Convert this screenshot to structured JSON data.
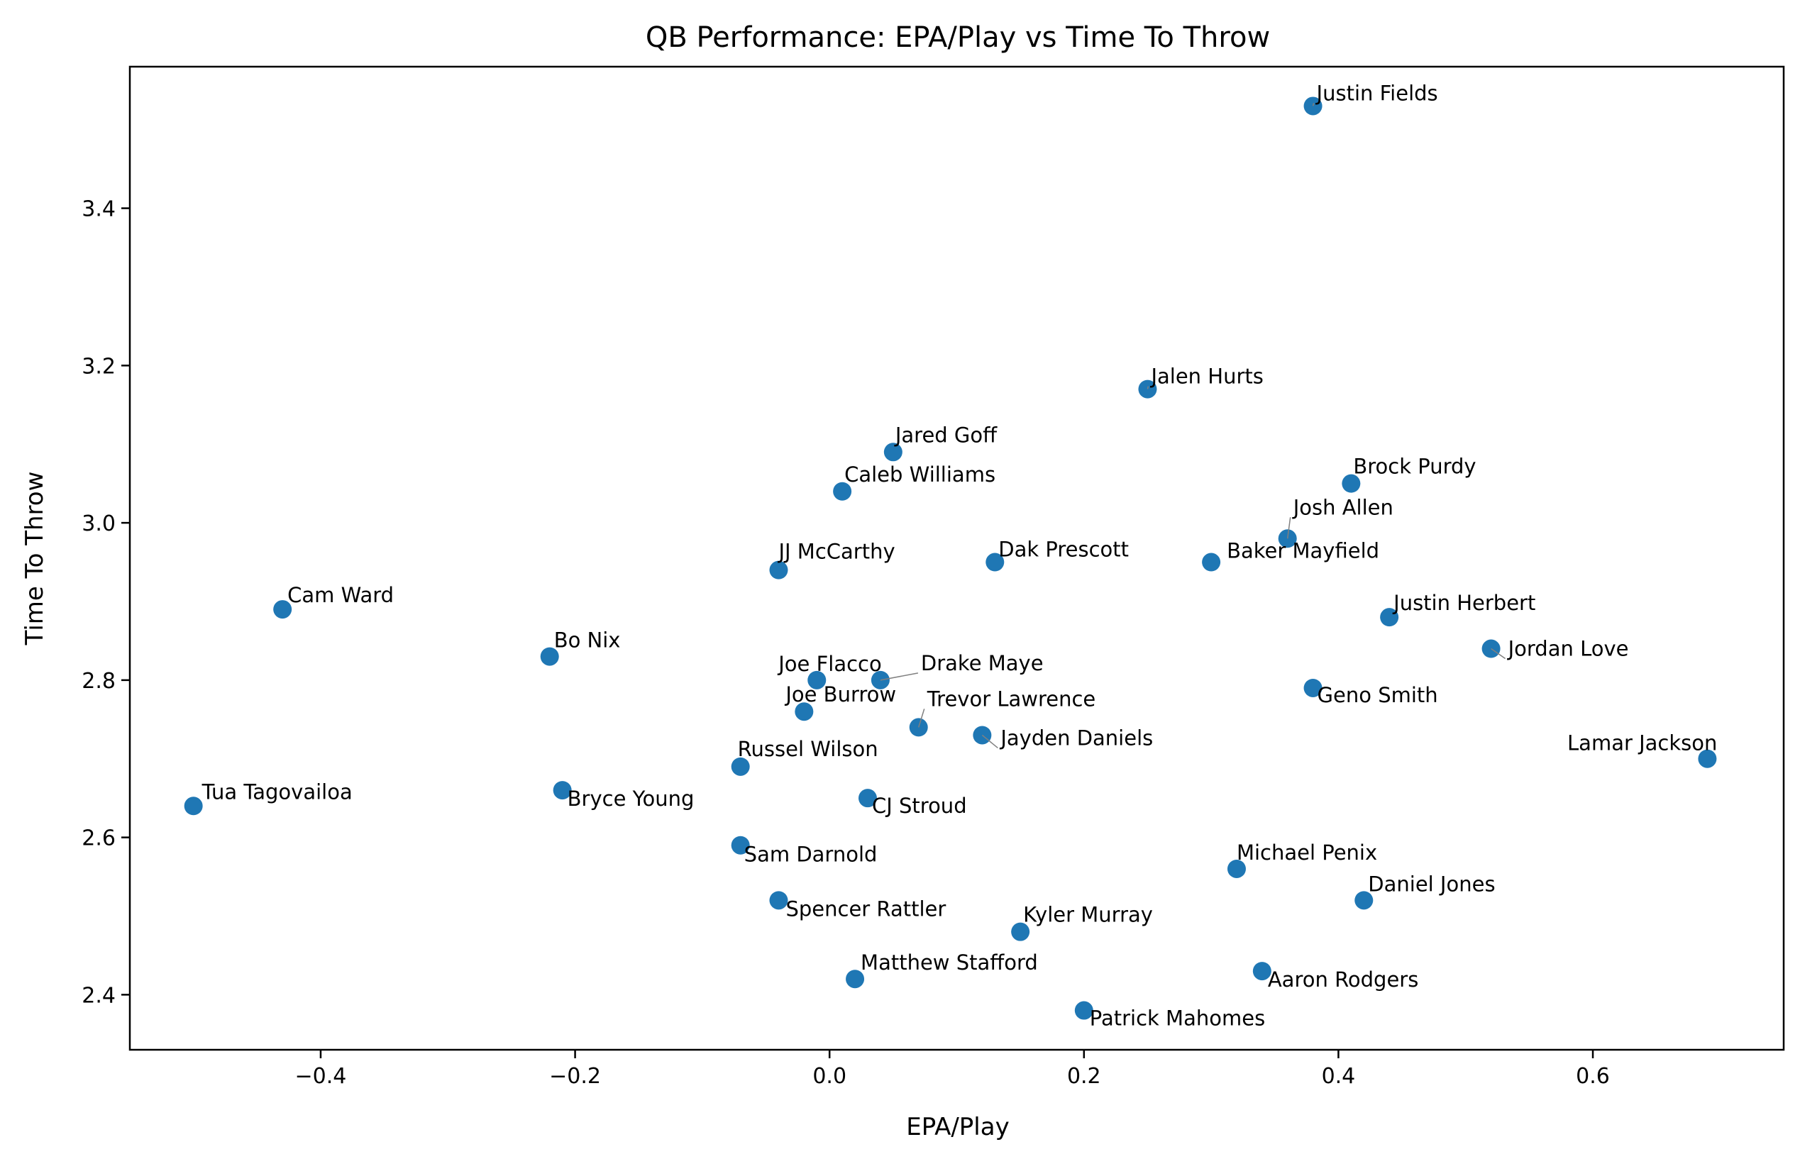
{
  "chart_data": {
    "type": "scatter",
    "title": "QB Performance: EPA/Play vs Time To Throw",
    "xlabel": "EPA/Play",
    "ylabel": "Time To Throw",
    "xlim": [
      -0.55,
      0.75
    ],
    "ylim": [
      2.33,
      3.58
    ],
    "grid": false,
    "point_color": "#1f77b4",
    "xticks": [
      {
        "value": -0.4,
        "label": "−0.4"
      },
      {
        "value": -0.2,
        "label": "−0.2"
      },
      {
        "value": 0.0,
        "label": "0.0"
      },
      {
        "value": 0.2,
        "label": "0.2"
      },
      {
        "value": 0.4,
        "label": "0.4"
      },
      {
        "value": 0.6,
        "label": "0.6"
      }
    ],
    "yticks": [
      {
        "value": 2.4,
        "label": "2.4"
      },
      {
        "value": 2.6,
        "label": "2.6"
      },
      {
        "value": 2.8,
        "label": "2.8"
      },
      {
        "value": 3.0,
        "label": "3.0"
      },
      {
        "value": 3.2,
        "label": "3.2"
      },
      {
        "value": 3.4,
        "label": "3.4"
      }
    ],
    "points": [
      {
        "name": "Justin Fields",
        "x": 0.38,
        "y": 3.53
      },
      {
        "name": "Jalen Hurts",
        "x": 0.25,
        "y": 3.17
      },
      {
        "name": "Jared Goff",
        "x": 0.05,
        "y": 3.09
      },
      {
        "name": "Brock Purdy",
        "x": 0.41,
        "y": 3.05
      },
      {
        "name": "Caleb Williams",
        "x": 0.01,
        "y": 3.04
      },
      {
        "name": "Josh Allen",
        "x": 0.36,
        "y": 2.98
      },
      {
        "name": "Dak Prescott",
        "x": 0.13,
        "y": 2.95
      },
      {
        "name": "Baker Mayfield",
        "x": 0.3,
        "y": 2.95
      },
      {
        "name": "JJ McCarthy",
        "x": -0.04,
        "y": 2.94
      },
      {
        "name": "Cam Ward",
        "x": -0.43,
        "y": 2.89
      },
      {
        "name": "Justin Herbert",
        "x": 0.44,
        "y": 2.88
      },
      {
        "name": "Jordan Love",
        "x": 0.52,
        "y": 2.84
      },
      {
        "name": "Bo Nix",
        "x": -0.22,
        "y": 2.83
      },
      {
        "name": "Joe Flacco",
        "x": -0.01,
        "y": 2.8
      },
      {
        "name": "Drake Maye",
        "x": 0.04,
        "y": 2.8
      },
      {
        "name": "Geno Smith",
        "x": 0.38,
        "y": 2.79
      },
      {
        "name": "Joe Burrow",
        "x": -0.02,
        "y": 2.76
      },
      {
        "name": "Trevor Lawrence",
        "x": 0.07,
        "y": 2.74
      },
      {
        "name": "Jayden Daniels",
        "x": 0.12,
        "y": 2.73
      },
      {
        "name": "Lamar Jackson",
        "x": 0.69,
        "y": 2.7
      },
      {
        "name": "Russel Wilson",
        "x": -0.07,
        "y": 2.69
      },
      {
        "name": "Bryce Young",
        "x": -0.21,
        "y": 2.66
      },
      {
        "name": "CJ Stroud",
        "x": 0.03,
        "y": 2.65
      },
      {
        "name": "Tua Tagovailoa",
        "x": -0.5,
        "y": 2.64
      },
      {
        "name": "Sam Darnold",
        "x": -0.07,
        "y": 2.59
      },
      {
        "name": "Michael Penix",
        "x": 0.32,
        "y": 2.56
      },
      {
        "name": "Daniel Jones",
        "x": 0.42,
        "y": 2.52
      },
      {
        "name": "Spencer Rattler",
        "x": -0.04,
        "y": 2.52
      },
      {
        "name": "Kyler Murray",
        "x": 0.15,
        "y": 2.48
      },
      {
        "name": "Aaron Rodgers",
        "x": 0.34,
        "y": 2.43
      },
      {
        "name": "Matthew Stafford",
        "x": 0.02,
        "y": 2.42
      },
      {
        "name": "Patrick Mahomes",
        "x": 0.2,
        "y": 2.38
      }
    ]
  }
}
